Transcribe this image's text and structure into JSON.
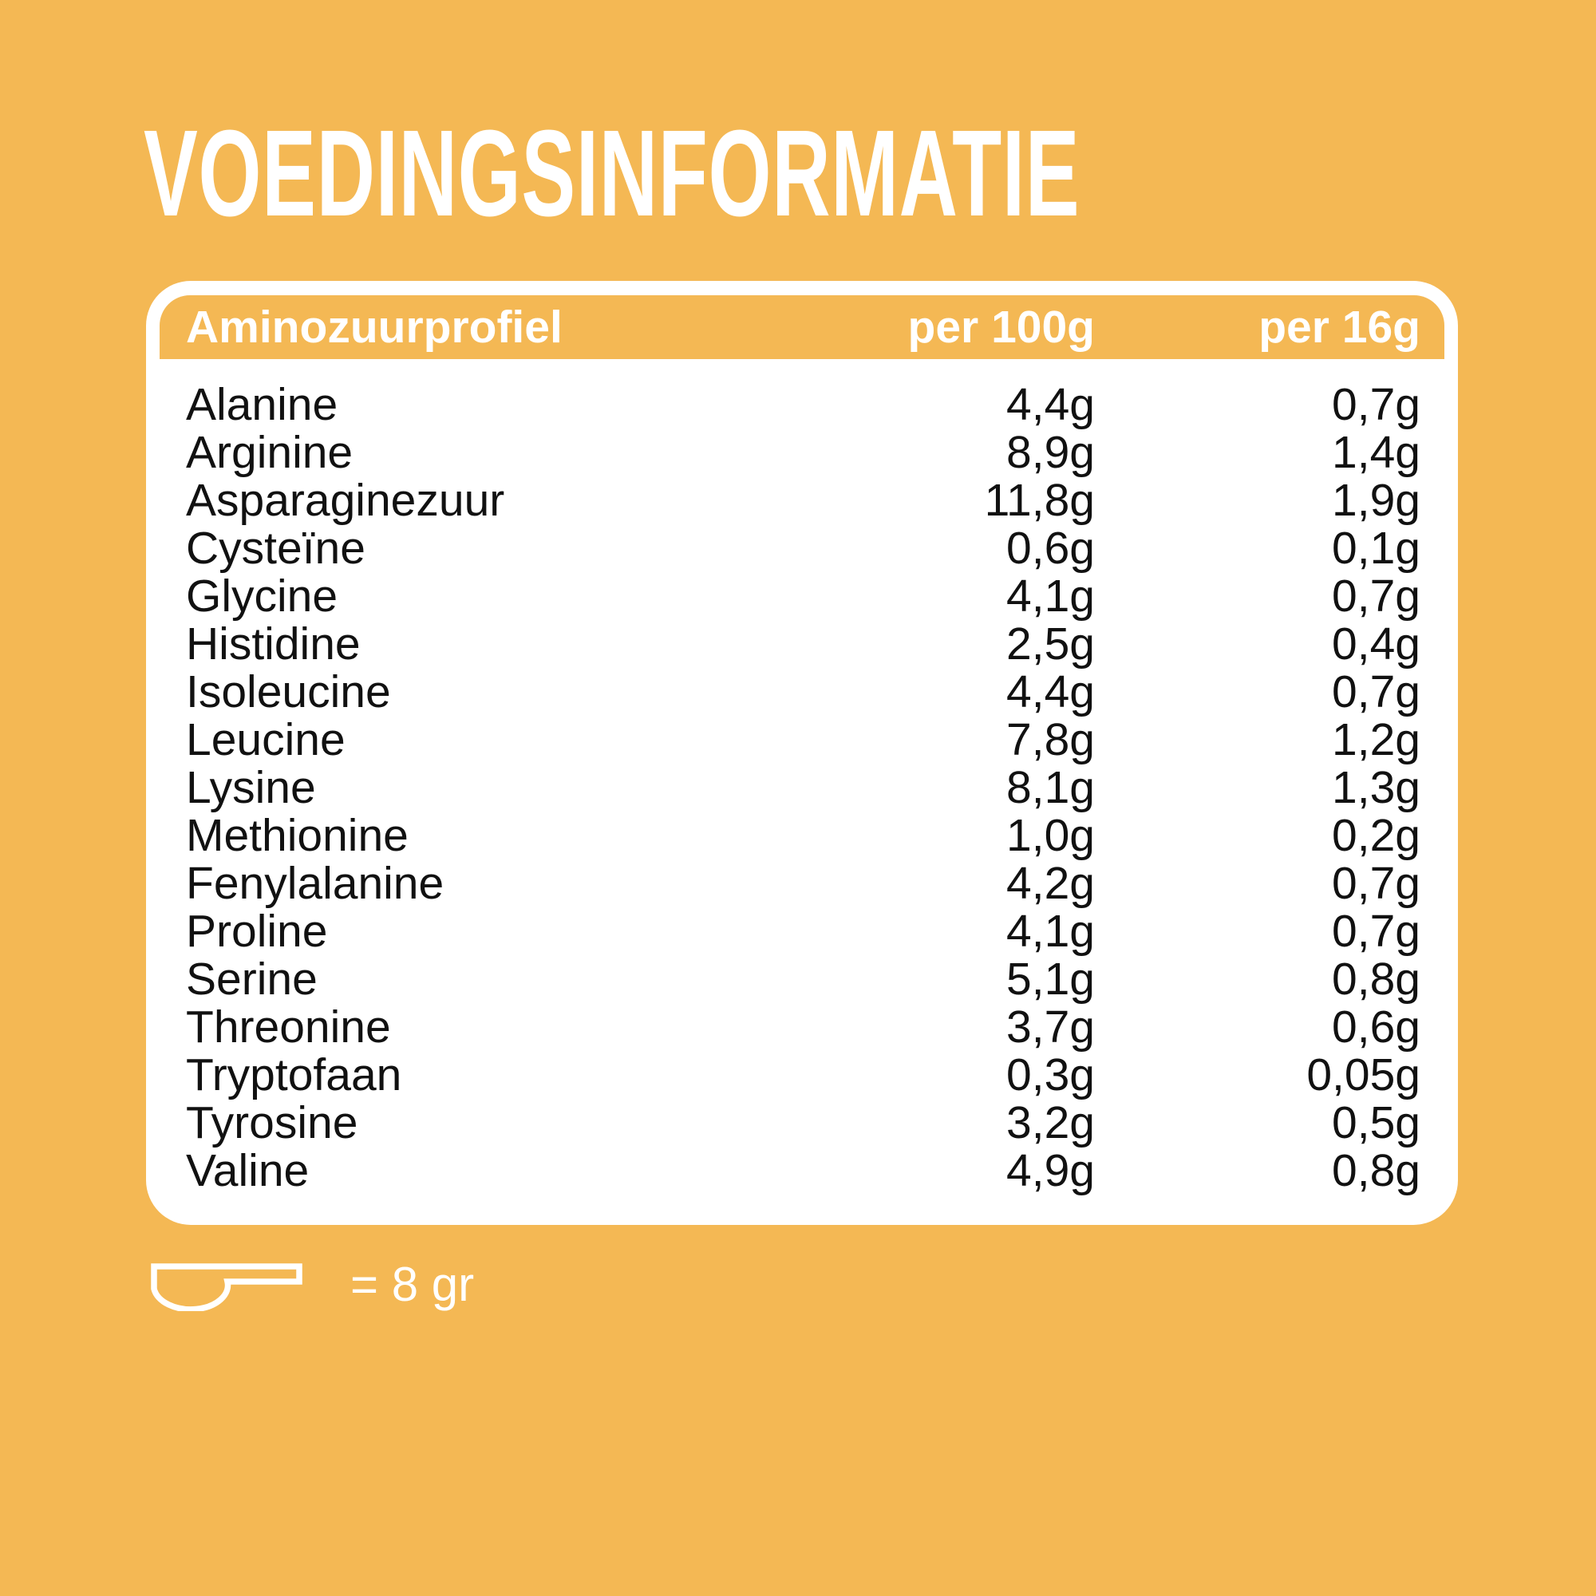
{
  "title": "VOEDINGSINFORMATIE",
  "colors": {
    "background": "#F4B854",
    "card": "#FFFFFF",
    "text": "#111111",
    "inverse": "#FFFFFF"
  },
  "table": {
    "columns": [
      "Aminozuurprofiel",
      "per 100g",
      "per 16g"
    ],
    "rows": [
      {
        "name": "Alanine",
        "per_100g": "4,4g",
        "per_16g": "0,7g"
      },
      {
        "name": "Arginine",
        "per_100g": "8,9g",
        "per_16g": "1,4g"
      },
      {
        "name": "Asparaginezuur",
        "per_100g": "11,8g",
        "per_16g": "1,9g"
      },
      {
        "name": "Cysteïne",
        "per_100g": "0,6g",
        "per_16g": "0,1g"
      },
      {
        "name": "Glycine",
        "per_100g": "4,1g",
        "per_16g": "0,7g"
      },
      {
        "name": "Histidine",
        "per_100g": "2,5g",
        "per_16g": "0,4g"
      },
      {
        "name": "Isoleucine",
        "per_100g": "4,4g",
        "per_16g": "0,7g"
      },
      {
        "name": "Leucine",
        "per_100g": "7,8g",
        "per_16g": "1,2g"
      },
      {
        "name": "Lysine",
        "per_100g": "8,1g",
        "per_16g": "1,3g"
      },
      {
        "name": "Methionine",
        "per_100g": "1,0g",
        "per_16g": "0,2g"
      },
      {
        "name": "Fenylalanine",
        "per_100g": "4,2g",
        "per_16g": "0,7g"
      },
      {
        "name": "Proline",
        "per_100g": "4,1g",
        "per_16g": "0,7g"
      },
      {
        "name": "Serine",
        "per_100g": "5,1g",
        "per_16g": "0,8g"
      },
      {
        "name": "Threonine",
        "per_100g": "3,7g",
        "per_16g": "0,6g"
      },
      {
        "name": "Tryptofaan",
        "per_100g": "0,3g",
        "per_16g": "0,05g"
      },
      {
        "name": "Tyrosine",
        "per_100g": "3,2g",
        "per_16g": "0,5g"
      },
      {
        "name": "Valine",
        "per_100g": "4,9g",
        "per_16g": "0,8g"
      }
    ]
  },
  "scoop": {
    "icon": "scoop-icon",
    "label": "= 8 gr"
  }
}
